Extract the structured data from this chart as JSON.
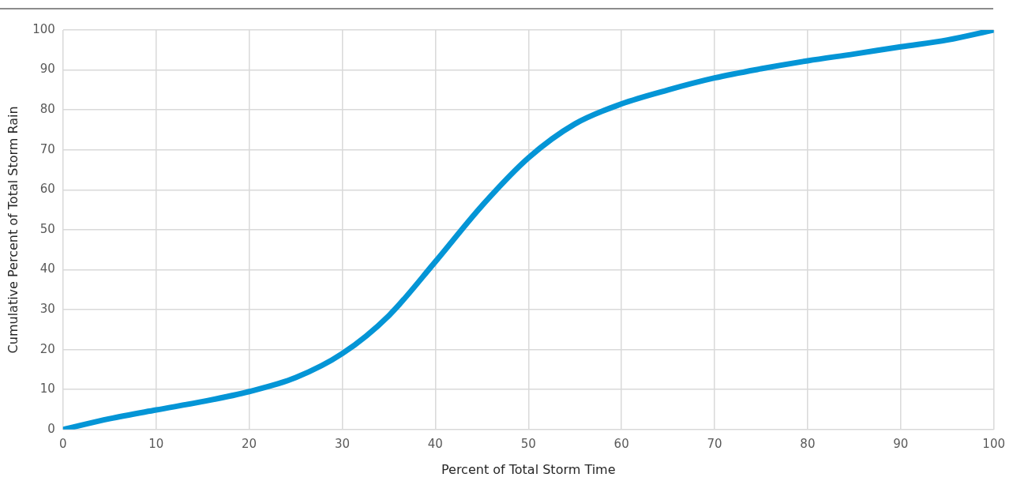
{
  "chart_data": {
    "type": "line",
    "xlabel": "Percent of Total Storm Time",
    "ylabel": "Cumulative Percent of Total Storm Rain",
    "x": [
      0,
      5,
      10,
      15,
      20,
      25,
      30,
      35,
      40,
      45,
      50,
      55,
      60,
      65,
      70,
      75,
      80,
      85,
      90,
      95,
      100
    ],
    "series": [
      {
        "color": "#0495d6",
        "values": [
          0,
          2.7,
          4.9,
          7,
          9.5,
          13,
          19,
          28.5,
          42,
          56,
          68,
          76.5,
          81.5,
          85,
          88,
          90.3,
          92.3,
          94,
          95.8,
          97.5,
          100
        ]
      }
    ],
    "xlim": [
      0,
      100
    ],
    "xticks": [
      0,
      10,
      20,
      30,
      40,
      50,
      60,
      70,
      80,
      90,
      100
    ],
    "ylim": [
      0,
      100
    ],
    "yticks": [
      0,
      10,
      20,
      30,
      40,
      50,
      60,
      70,
      80,
      90,
      100
    ],
    "grid": true,
    "legend": false,
    "marker": "none",
    "line_style": "solid"
  }
}
